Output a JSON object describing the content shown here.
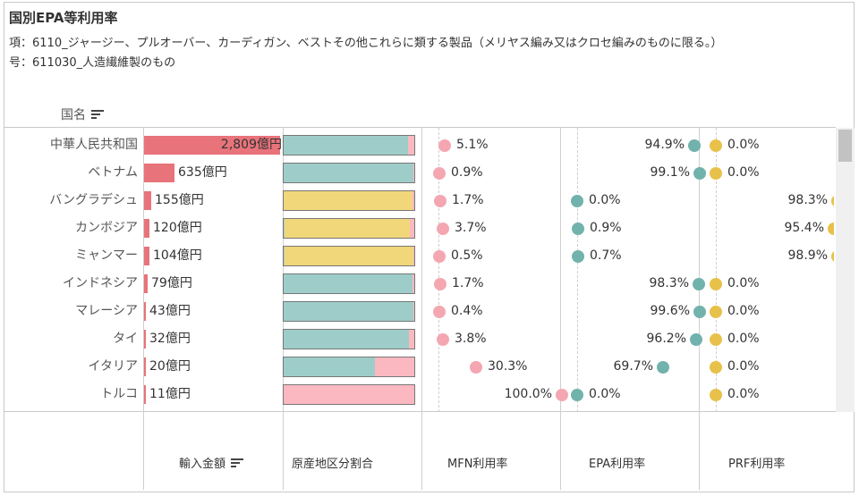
{
  "title": "国別EPA等利用率",
  "subtitle_item": "項：6110_ジャージー、プルオーバー、カーディガン、ベストその他これらに類する製品（メリヤス編み又はクロセ編みのものに限る。）",
  "subtitle_sub": "号：611030_人造繊維製のもの",
  "row_header": "国名",
  "column_headers": {
    "amount": "輸入金額",
    "share": "原産地区分割合",
    "mfn": "MFN利用率",
    "epa": "EPA利用率",
    "prf": "PRF利用率"
  },
  "colors": {
    "amount_bar": "#e8737a",
    "mfn": "#f4a7b1",
    "epa": "#72b2ad",
    "prf": "#e8c14a",
    "epa_seg": "#9ecdc9",
    "prf_seg": "#f1d67a",
    "mfn_seg": "#fbb8c1"
  },
  "chart_data": {
    "type": "table",
    "columns": [
      "国名",
      "輸入金額",
      "原産地区分割合",
      "MFN利用率",
      "EPA利用率",
      "PRF利用率"
    ],
    "units": {
      "amount": "億円",
      "rates": "%"
    },
    "rows": [
      {
        "country": "中華人民共和国",
        "amount": 2809,
        "amount_label": "2,809億円",
        "mfn": 5.1,
        "mfn_label": "5.1%",
        "epa": 94.9,
        "epa_label": "94.9%",
        "prf": 0.0,
        "prf_label": "0.0%"
      },
      {
        "country": "ベトナム",
        "amount": 635,
        "amount_label": "635億円",
        "mfn": 0.9,
        "mfn_label": "0.9%",
        "epa": 99.1,
        "epa_label": "99.1%",
        "prf": 0.0,
        "prf_label": "0.0%"
      },
      {
        "country": "バングラデシュ",
        "amount": 155,
        "amount_label": "155億円",
        "mfn": 1.7,
        "mfn_label": "1.7%",
        "epa": 0.0,
        "epa_label": "0.0%",
        "prf": 98.3,
        "prf_label": "98.3%"
      },
      {
        "country": "カンボジア",
        "amount": 120,
        "amount_label": "120億円",
        "mfn": 3.7,
        "mfn_label": "3.7%",
        "epa": 0.9,
        "epa_label": "0.9%",
        "prf": 95.4,
        "prf_label": "95.4%"
      },
      {
        "country": "ミャンマー",
        "amount": 104,
        "amount_label": "104億円",
        "mfn": 0.5,
        "mfn_label": "0.5%",
        "epa": 0.7,
        "epa_label": "0.7%",
        "prf": 98.9,
        "prf_label": "98.9%"
      },
      {
        "country": "インドネシア",
        "amount": 79,
        "amount_label": "79億円",
        "mfn": 1.7,
        "mfn_label": "1.7%",
        "epa": 98.3,
        "epa_label": "98.3%",
        "prf": 0.0,
        "prf_label": "0.0%"
      },
      {
        "country": "マレーシア",
        "amount": 43,
        "amount_label": "43億円",
        "mfn": 0.4,
        "mfn_label": "0.4%",
        "epa": 99.6,
        "epa_label": "99.6%",
        "prf": 0.0,
        "prf_label": "0.0%"
      },
      {
        "country": "タイ",
        "amount": 32,
        "amount_label": "32億円",
        "mfn": 3.8,
        "mfn_label": "3.8%",
        "epa": 96.2,
        "epa_label": "96.2%",
        "prf": 0.0,
        "prf_label": "0.0%"
      },
      {
        "country": "イタリア",
        "amount": 20,
        "amount_label": "20億円",
        "mfn": 30.3,
        "mfn_label": "30.3%",
        "epa": 69.7,
        "epa_label": "69.7%",
        "prf": 0.0,
        "prf_label": "0.0%"
      },
      {
        "country": "トルコ",
        "amount": 11,
        "amount_label": "11億円",
        "mfn": 100.0,
        "mfn_label": "100.0%",
        "epa": 0.0,
        "epa_label": "0.0%",
        "prf": 0.0,
        "prf_label": "0.0%"
      }
    ],
    "amount_axis_max": 2809,
    "rate_axis": [
      0,
      100
    ]
  }
}
